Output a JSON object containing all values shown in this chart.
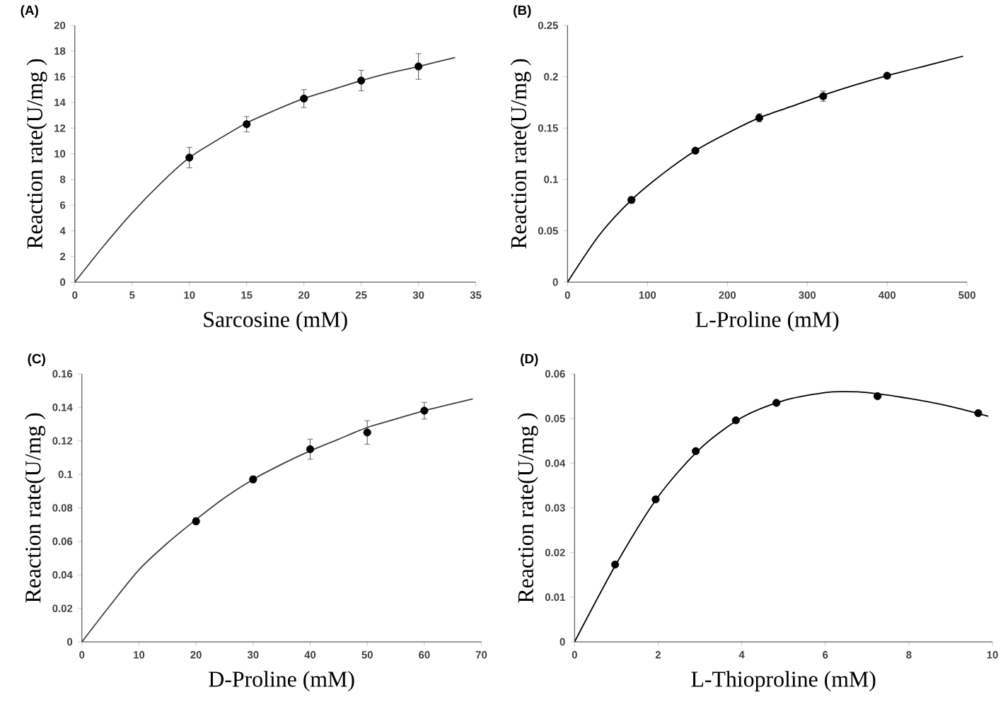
{
  "chart_data": [
    {
      "type": "scatter",
      "marker": "circle",
      "title": "(A)",
      "xlabel": "Sarcosine (mM)",
      "ylabel": "Reaction rate(U/mg )",
      "xlim": [
        0,
        35
      ],
      "ylim": [
        0,
        20
      ],
      "xticks": [
        0,
        5,
        10,
        15,
        20,
        25,
        30,
        35
      ],
      "yticks": [
        0,
        2,
        4,
        6,
        8,
        10,
        12,
        14,
        16,
        18,
        20
      ],
      "series": [
        {
          "color": "#000000",
          "x": [
            10,
            15,
            20,
            25,
            30
          ],
          "values": [
            9.7,
            12.3,
            14.3,
            15.7,
            16.8
          ],
          "errors": [
            0.8,
            0.6,
            0.7,
            0.8,
            1.0
          ]
        },
        {
          "type": "line",
          "marker": "none",
          "line_style": "solid",
          "color": "#404040",
          "x": [
            0,
            2.5,
            5,
            7.5,
            10,
            12.5,
            15,
            17.5,
            20,
            22.5,
            25,
            27.5,
            30,
            33.2
          ],
          "values": [
            0,
            2.8,
            5.4,
            7.7,
            9.7,
            11.1,
            12.4,
            13.4,
            14.3,
            15.0,
            15.7,
            16.3,
            16.8,
            17.5
          ]
        }
      ]
    },
    {
      "type": "scatter",
      "marker": "circle",
      "title": "(B)",
      "xlabel": "L-Proline (mM)",
      "ylabel": "Reaction rate(U/mg )",
      "xlim": [
        0,
        500
      ],
      "ylim": [
        0,
        0.25
      ],
      "xticks": [
        0,
        100,
        200,
        300,
        400,
        500
      ],
      "yticks": [
        0,
        0.05,
        0.1,
        0.15,
        0.2,
        0.25
      ],
      "series": [
        {
          "color": "#000000",
          "x": [
            80,
            160,
            240,
            320,
            400
          ],
          "values": [
            0.08,
            0.128,
            0.16,
            0.181,
            0.201
          ],
          "errors": [
            0.003,
            0.002,
            0.004,
            0.005,
            0.002
          ]
        },
        {
          "type": "line",
          "marker": "none",
          "line_style": "solid",
          "color": "#000000",
          "x": [
            0,
            40,
            80,
            120,
            160,
            200,
            240,
            280,
            320,
            360,
            400,
            450,
            495
          ],
          "values": [
            0,
            0.046,
            0.08,
            0.106,
            0.128,
            0.145,
            0.16,
            0.171,
            0.182,
            0.192,
            0.201,
            0.211,
            0.22
          ]
        }
      ]
    },
    {
      "type": "scatter",
      "marker": "circle",
      "title": "(C)",
      "xlabel": "D-Proline (mM)",
      "ylabel": "Reaction rate(U/mg )",
      "xlim": [
        0,
        70
      ],
      "ylim": [
        0,
        0.16
      ],
      "xticks": [
        0,
        10,
        20,
        30,
        40,
        50,
        60,
        70
      ],
      "yticks": [
        0,
        0.02,
        0.04,
        0.06,
        0.08,
        0.1,
        0.12,
        0.14,
        0.16
      ],
      "series": [
        {
          "color": "#000000",
          "x": [
            20,
            30,
            40,
            50,
            60
          ],
          "values": [
            0.072,
            0.097,
            0.115,
            0.125,
            0.138
          ],
          "errors": [
            0.002,
            0.002,
            0.006,
            0.007,
            0.005
          ]
        },
        {
          "type": "line",
          "marker": "none",
          "line_style": "solid",
          "color": "#404040",
          "x": [
            0,
            5,
            10,
            15,
            20,
            25,
            30,
            35,
            40,
            45,
            50,
            55,
            60,
            68.5
          ],
          "values": [
            0,
            0.022,
            0.043,
            0.059,
            0.073,
            0.086,
            0.097,
            0.106,
            0.114,
            0.121,
            0.128,
            0.133,
            0.138,
            0.145
          ]
        }
      ]
    },
    {
      "type": "scatter",
      "marker": "circle",
      "title": "(D)",
      "xlabel": "L-Thioproline (mM)",
      "ylabel": "Reaction rate(U/mg )",
      "xlim": [
        0,
        10
      ],
      "ylim": [
        0,
        0.06
      ],
      "xticks": [
        0,
        2,
        4,
        6,
        8,
        10
      ],
      "yticks": [
        0,
        0.01,
        0.02,
        0.03,
        0.04,
        0.05,
        0.06
      ],
      "series": [
        {
          "color": "#000000",
          "x": [
            0.97,
            1.94,
            2.9,
            3.86,
            4.83,
            7.25,
            9.66
          ],
          "values": [
            0.0173,
            0.0319,
            0.0427,
            0.0496,
            0.0535,
            0.055,
            0.0512
          ]
        },
        {
          "type": "line",
          "marker": "none",
          "line_style": "solid",
          "color": "#000000",
          "x": [
            0,
            1,
            2,
            3,
            4,
            5,
            6,
            6.5,
            7,
            8,
            9,
            9.9
          ],
          "values": [
            0,
            0.0175,
            0.0325,
            0.0432,
            0.0502,
            0.054,
            0.0558,
            0.056,
            0.0558,
            0.0545,
            0.0527,
            0.0505
          ]
        }
      ]
    }
  ]
}
